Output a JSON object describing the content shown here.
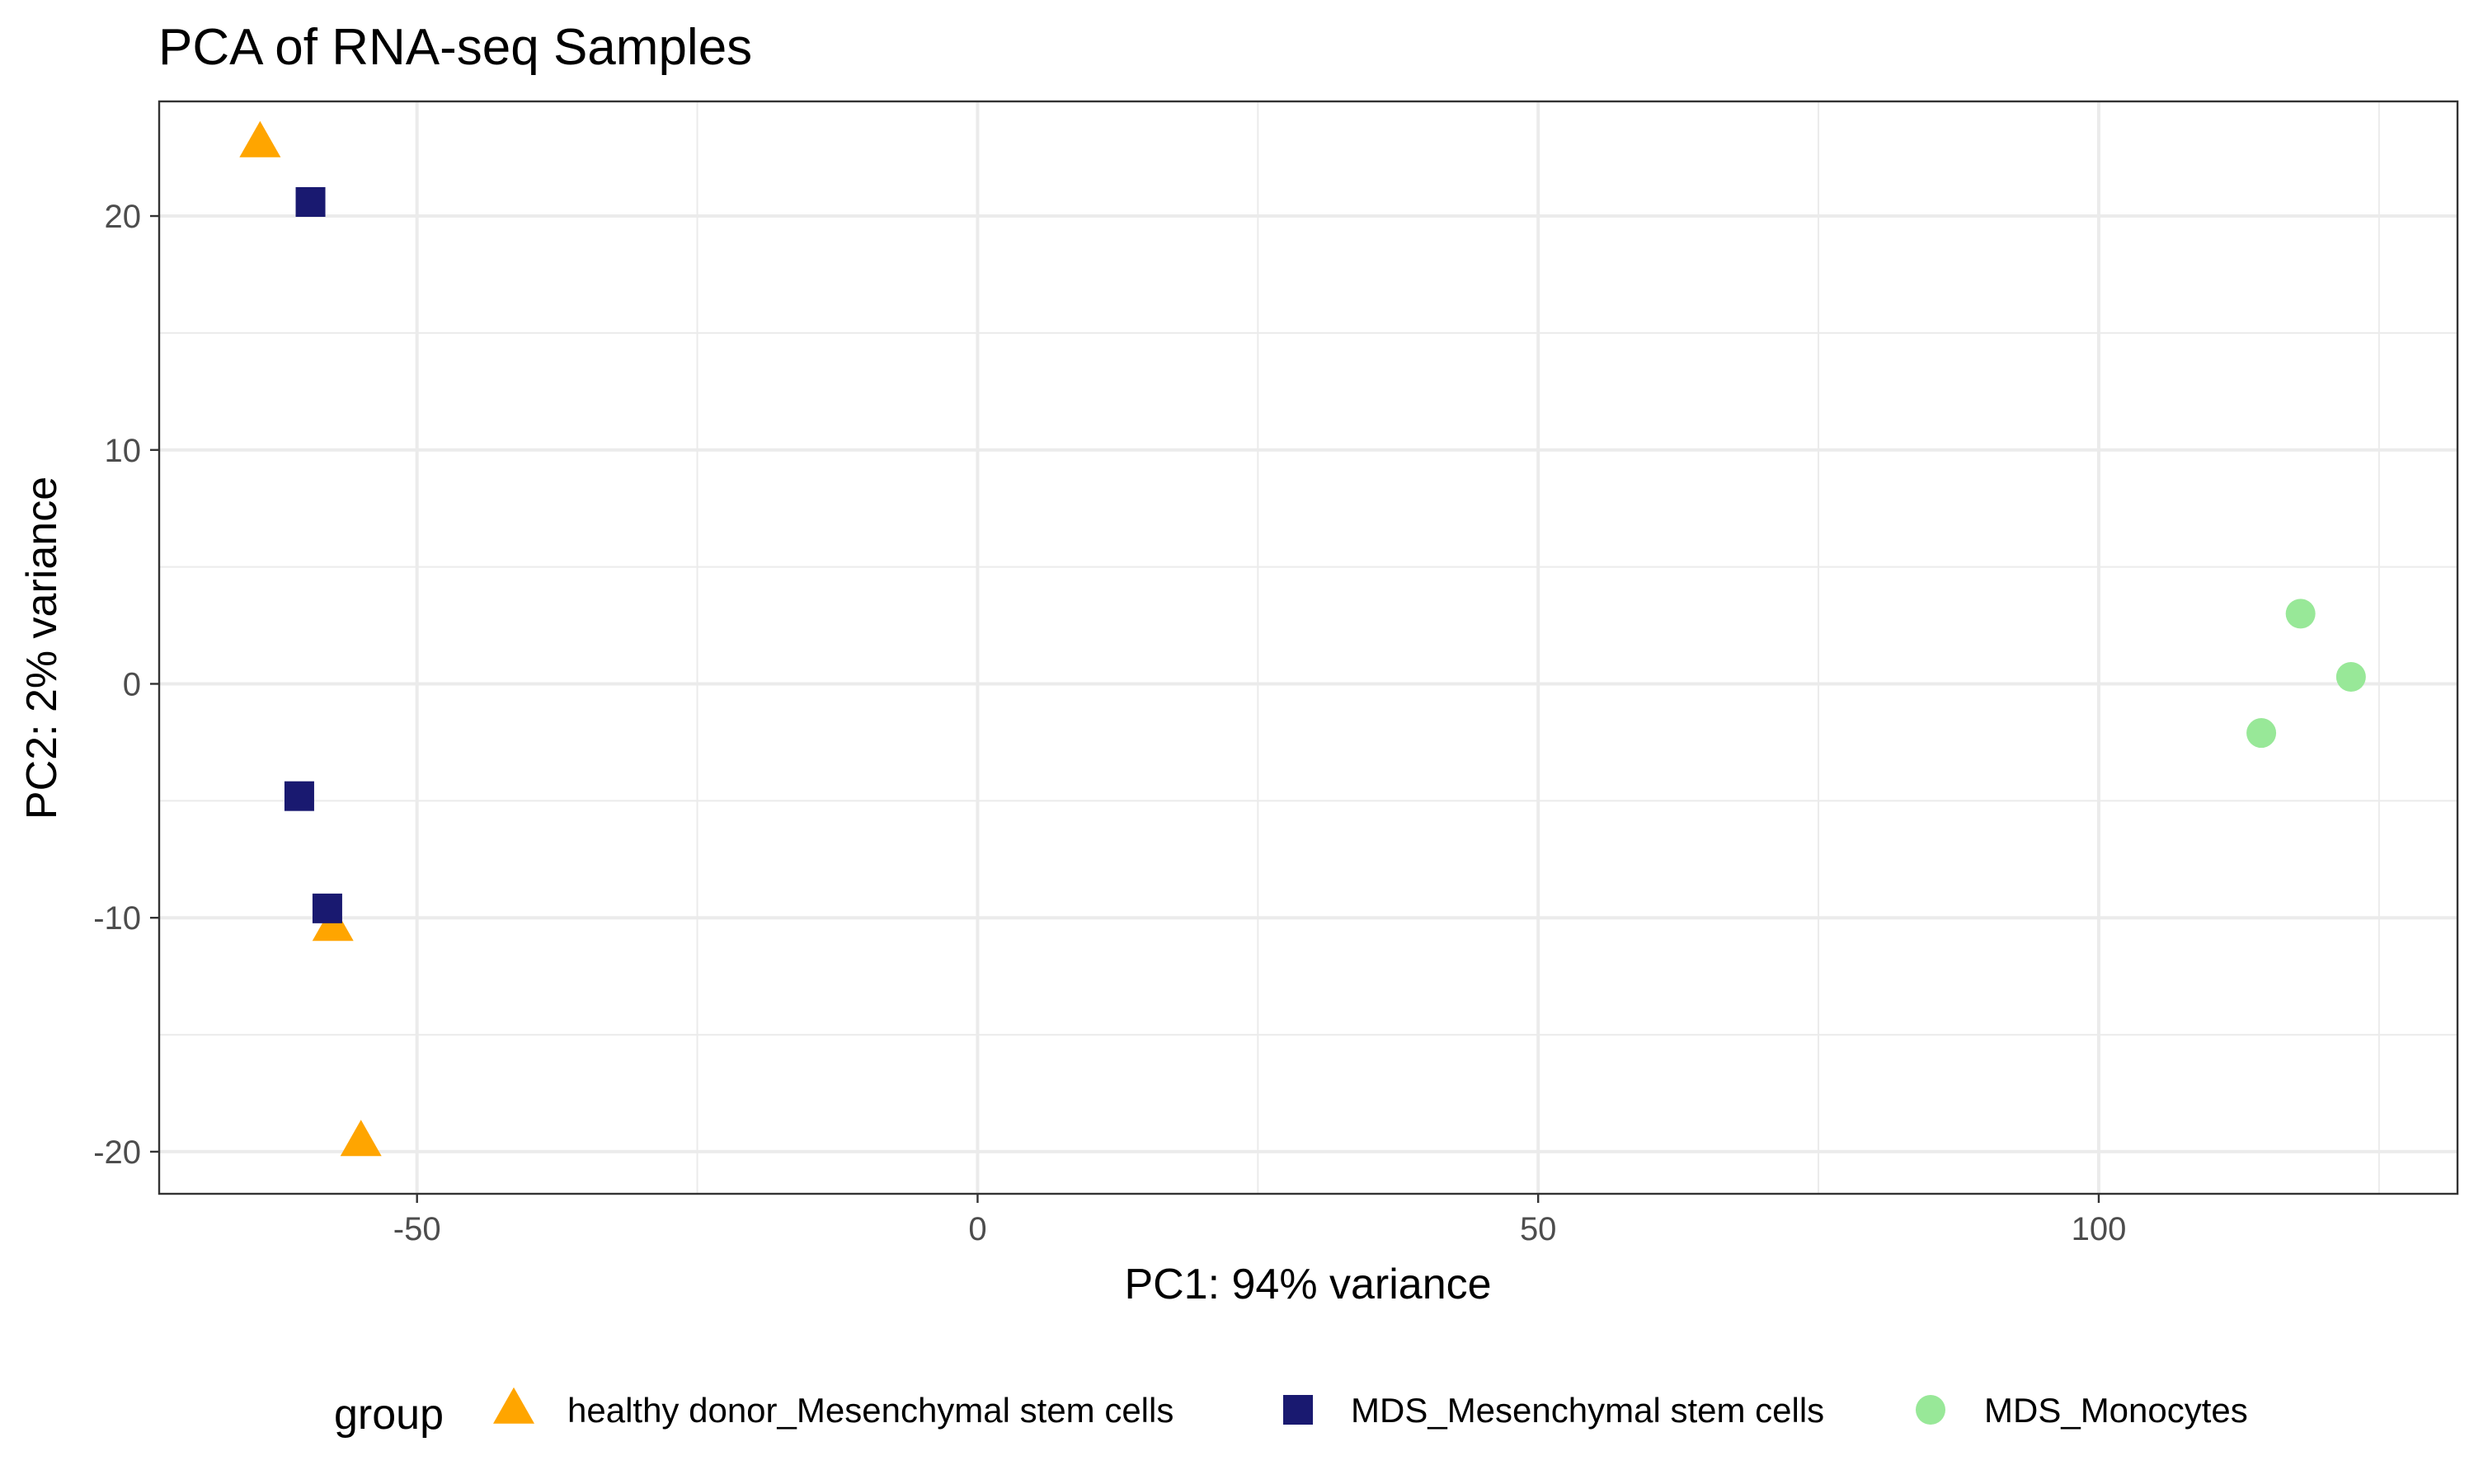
{
  "chart_data": {
    "type": "scatter",
    "title": "PCA of RNA-seq Samples",
    "xlabel": "PC1: 94% variance",
    "ylabel": "PC2: 2% variance",
    "xlim": [
      -73,
      132
    ],
    "ylim": [
      -21.8,
      24.9
    ],
    "x_ticks": [
      -50,
      0,
      50,
      100
    ],
    "x_minor_ticks": [
      -25,
      25,
      75,
      125
    ],
    "y_ticks": [
      -20,
      -10,
      0,
      10,
      20
    ],
    "y_minor_ticks": [
      -15,
      -5,
      5,
      15
    ],
    "grid": true,
    "legend": {
      "position": "bottom",
      "title": "group"
    },
    "series": [
      {
        "name": "healthy donor_Mesenchymal stem cells",
        "shape": "triangle",
        "color": "#FFA500",
        "points": [
          {
            "x": -64,
            "y": 23.1
          },
          {
            "x": -57.5,
            "y": -10.4
          },
          {
            "x": -55,
            "y": -19.6
          }
        ]
      },
      {
        "name": "MDS_Mesenchymal stem cells",
        "shape": "square",
        "color": "#191970",
        "points": [
          {
            "x": -59.5,
            "y": 20.6
          },
          {
            "x": -60.5,
            "y": -4.8
          },
          {
            "x": -58,
            "y": -9.6
          }
        ]
      },
      {
        "name": "MDS_Monocytes",
        "shape": "circle",
        "color": "#98E898",
        "points": [
          {
            "x": 118,
            "y": 3.0
          },
          {
            "x": 122.5,
            "y": 0.3
          },
          {
            "x": 114.5,
            "y": -2.1
          }
        ]
      }
    ]
  }
}
